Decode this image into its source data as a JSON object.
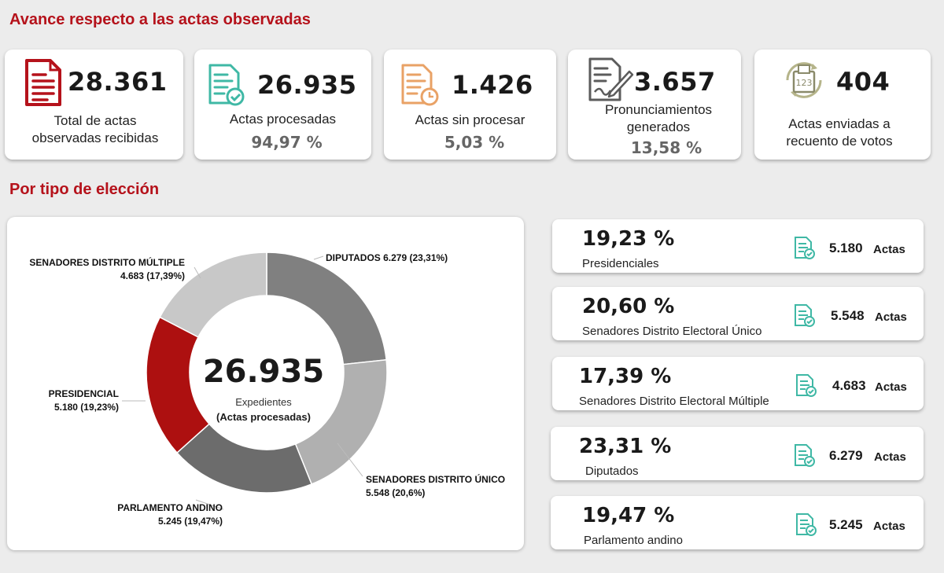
{
  "titles": {
    "progress": "Avance respecto a las actas observadas",
    "by_type": "Por tipo de elección"
  },
  "colors": {
    "brand_red": "#b5121b",
    "doc_icon_teal": "#3fb8a5",
    "doc_icon_orange": "#e9a266"
  },
  "kpis": [
    {
      "value": "28.361",
      "label": "Total de actas observadas recibidas",
      "icon": "document-stack-icon"
    },
    {
      "value": "26.935",
      "label": "Actas procesadas",
      "percent": "94,97 %",
      "icon": "document-check-icon"
    },
    {
      "value": "1.426",
      "label": "Actas sin procesar",
      "percent": "5,03 %",
      "icon": "document-clock-icon"
    },
    {
      "value": "3.657",
      "label": "Pronunciamientos generados",
      "percent": "13,58 %",
      "icon": "document-signature-icon"
    },
    {
      "value": "404",
      "label": "Actas enviadas a recuento de votos",
      "icon": "ballot-box-recount-icon"
    }
  ],
  "donut": {
    "center_value": "26.935",
    "center_label": "Expedientes",
    "center_sublabel": "(Actas procesadas)"
  },
  "chart_data": {
    "type": "pie",
    "subtype": "donut",
    "total": 26935,
    "categories": [
      "DIPUTADOS",
      "SENADORES DISTRITO ÚNICO",
      "PARLAMENTO ANDINO",
      "PRESIDENCIAL",
      "SENADORES DISTRITO MÚLTIPLE"
    ],
    "values": [
      6279,
      5548,
      5245,
      5180,
      4683
    ],
    "percents": [
      "23,31%",
      "20,6%",
      "19,47%",
      "19,23%",
      "17,39%"
    ],
    "colors": [
      "#808080",
      "#b0b0b0",
      "#6c6c6c",
      "#ad1010",
      "#c8c8c8"
    ],
    "labels": [
      {
        "name": "DIPUTADOS",
        "detail": "6.279 (23,31%)"
      },
      {
        "name": "SENADORES DISTRITO ÚNICO",
        "detail": "5.548 (20,6%)"
      },
      {
        "name": "PARLAMENTO ANDINO",
        "detail": "5.245 (19,47%)"
      },
      {
        "name": "PRESIDENCIAL",
        "detail": "5.180 (19,23%)"
      },
      {
        "name": "SENADORES DISTRITO MÚLTIPLE",
        "detail": "4.683 (17,39%)"
      }
    ]
  },
  "stats": [
    {
      "percent": "19,23 %",
      "name": "Presidenciales",
      "count": "5.180",
      "unit": "Actas"
    },
    {
      "percent": "20,60 %",
      "name": "Senadores Distrito Electoral Único",
      "count": "5.548",
      "unit": "Actas"
    },
    {
      "percent": "17,39 %",
      "name": "Senadores Distrito Electoral Múltiple",
      "count": "4.683",
      "unit": "Actas"
    },
    {
      "percent": "23,31 %",
      "name": "Diputados",
      "count": "6.279",
      "unit": "Actas"
    },
    {
      "percent": "19,47 %",
      "name": "Parlamento andino",
      "count": "5.245",
      "unit": "Actas"
    }
  ]
}
